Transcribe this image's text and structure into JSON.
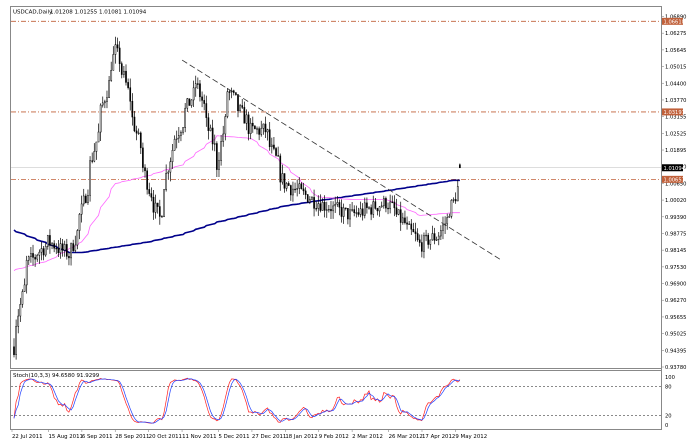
{
  "header": {
    "symbol": "USDCAD,Daily",
    "ohlc": "1.01208 1.01255 1.01081 1.01094"
  },
  "stoch_header": {
    "label": "Stoch(10,3,3) 94.6580 91.9299"
  },
  "price_axis": {
    "labels": [
      "1.06890",
      "1.06275",
      "1.05645",
      "1.05015",
      "1.04400",
      "1.03770",
      "1.03155",
      "1.02525",
      "1.01895",
      "1.01280",
      "1.00650",
      "1.00020",
      "0.99390",
      "0.98775",
      "0.98145",
      "0.97530",
      "0.96900",
      "0.96270",
      "0.95655",
      "0.95025",
      "0.94395",
      "0.93780"
    ],
    "tags": [
      {
        "text": "1.06610",
        "color": "#c0603a"
      },
      {
        "text": "1.03197",
        "color": "#c0603a"
      },
      {
        "text": "1.01094",
        "color": "#000000"
      },
      {
        "text": "1.00657",
        "color": "#c0603a"
      }
    ]
  },
  "stoch_axis": {
    "labels": [
      "100",
      "80",
      "20",
      "0"
    ]
  },
  "date_axis": {
    "labels": [
      "22 Jul 2011",
      "15 Aug 2011",
      "6 Sep 2011",
      "28 Sep 2011",
      "20 Oct 2011",
      "11 Nov 2011",
      "5 Dec 2011",
      "27 Dec 2011",
      "18 Jan 2012",
      "9 Feb 2012",
      "2 Mar 2012",
      "26 Mar 2012",
      "17 Apr 2012",
      "9 May 2012"
    ]
  },
  "colors": {
    "background": "#ffffff",
    "candle": "#000000",
    "ma_slow": "#00008b",
    "ma_fast": "#ff66ff",
    "resistance": "#c0603a",
    "trendline": "#333333",
    "stoch_main": "#ff2020",
    "stoch_signal": "#2040ff"
  },
  "chart_data": {
    "type": "candlestick",
    "symbol": "USDCAD",
    "timeframe": "Daily",
    "last_bar": {
      "open": 1.01208,
      "high": 1.01255,
      "low": 1.01081,
      "close": 1.01094
    },
    "y_range": [
      0.9355,
      1.0715
    ],
    "x_range": [
      "22 Jul 2011",
      "14 May 2012"
    ],
    "horizontal_levels": [
      1.0661,
      1.03197,
      1.00657
    ],
    "current_price": 1.01094,
    "price_path": [
      [
        "22 Jul 2011",
        0.9435
      ],
      [
        "1 Aug 2011",
        0.975
      ],
      [
        "15 Aug 2011",
        0.983
      ],
      [
        "29 Aug 2011",
        0.978
      ],
      [
        "6 Sep 2011",
        0.995
      ],
      [
        "20 Sep 2011",
        1.035
      ],
      [
        "28 Sep 2011",
        1.055
      ],
      [
        "4 Oct 2011",
        1.045
      ],
      [
        "20 Oct 2011",
        1.003
      ],
      [
        "27 Oct 2011",
        0.992
      ],
      [
        "4 Nov 2011",
        1.018
      ],
      [
        "11 Nov 2011",
        1.028
      ],
      [
        "21 Nov 2011",
        1.043
      ],
      [
        "5 Dec 2011",
        1.012
      ],
      [
        "12 Dec 2011",
        1.04
      ],
      [
        "27 Dec 2011",
        1.025
      ],
      [
        "5 Jan 2012",
        1.025
      ],
      [
        "18 Jan 2012",
        1.005
      ],
      [
        "9 Feb 2012",
        0.998
      ],
      [
        "2 Mar 2012",
        0.993
      ],
      [
        "26 Mar 2012",
        0.998
      ],
      [
        "17 Apr 2012",
        0.982
      ],
      [
        "30 Apr 2012",
        0.986
      ],
      [
        "9 May 2012",
        0.998
      ],
      [
        "14 May 2012",
        1.0109
      ]
    ],
    "trendline": [
      [
        "11 Nov 2011",
        1.0515
      ],
      [
        "14 May 2012",
        0.9852
      ]
    ],
    "ma_slow_path": [
      [
        "22 Jul 2011",
        0.9875
      ],
      [
        "29 Aug 2011",
        0.979
      ],
      [
        "6 Sep 2011",
        0.979
      ],
      [
        "20 Oct 2011",
        0.983
      ],
      [
        "11 Nov 2011",
        0.9858
      ],
      [
        "5 Dec 2011",
        0.9905
      ],
      [
        "18 Jan 2012",
        0.9965
      ],
      [
        "9 Feb 2012",
        0.9985
      ],
      [
        "2 Mar 2012",
        1.0003
      ],
      [
        "26 Mar 2012",
        1.0023
      ],
      [
        "9 May 2012",
        1.0062
      ]
    ],
    "ma_fast_path": [
      [
        "22 Jul 2011",
        0.9722
      ],
      [
        "15 Aug 2011",
        0.976
      ],
      [
        "6 Sep 2011",
        0.983
      ],
      [
        "28 Sep 2011",
        1.005
      ],
      [
        "20 Oct 2011",
        1.008
      ],
      [
        "11 Nov 2011",
        1.012
      ],
      [
        "5 Dec 2011",
        1.023
      ],
      [
        "27 Dec 2011",
        1.022
      ],
      [
        "18 Jan 2012",
        1.012
      ],
      [
        "9 Feb 2012",
        1.0
      ],
      [
        "2 Mar 2012",
        0.999
      ],
      [
        "26 Mar 2012",
        0.999
      ],
      [
        "17 Apr 2012",
        0.993
      ],
      [
        "9 May 2012",
        0.994
      ]
    ],
    "stochastic": {
      "main": 94.658,
      "signal": 91.9299,
      "levels": [
        80,
        20
      ],
      "range": [
        0,
        100
      ]
    }
  }
}
